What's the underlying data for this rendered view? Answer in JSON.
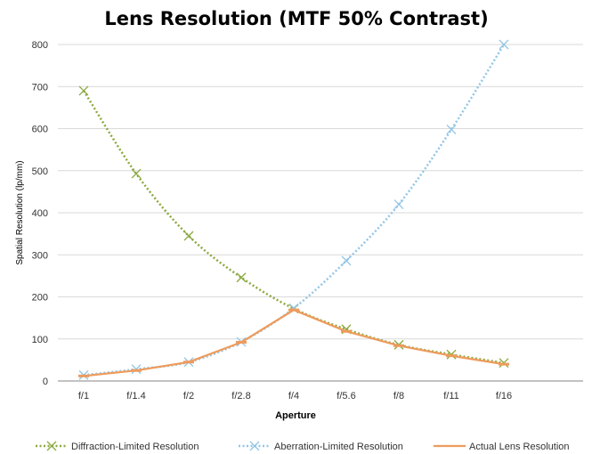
{
  "chart_data": {
    "type": "line",
    "title": "Lens Resolution (MTF 50% Contrast)",
    "xlabel": "Aperture",
    "ylabel": "Spatial Resolution (lp/mm)",
    "categories": [
      "f/1",
      "f/1.4",
      "f/2",
      "f/2.8",
      "f/4",
      "f/5.6",
      "f/8",
      "f/11",
      "f/16"
    ],
    "ylim": [
      0,
      800
    ],
    "yticks": [
      0,
      100,
      200,
      300,
      400,
      500,
      600,
      700,
      800
    ],
    "grid": true,
    "legend": "bottom",
    "series": [
      {
        "name": "Diffraction-Limited Resolution",
        "values": [
          690,
          493,
          345,
          246,
          172,
          123,
          86,
          63,
          43
        ],
        "color": "#8BA93F",
        "style": "dotted",
        "marker": "x"
      },
      {
        "name": "Aberration-Limited Resolution",
        "values": [
          14,
          28,
          45,
          93,
          173,
          286,
          420,
          598,
          800
        ],
        "color": "#93C6E6",
        "style": "dotted",
        "marker": "x"
      },
      {
        "name": "Actual Lens Resolution",
        "values": [
          12,
          25,
          45,
          92,
          169,
          118,
          84,
          60,
          40
        ],
        "color": "#EE9B5C",
        "style": "solid",
        "marker": "dash"
      }
    ]
  }
}
